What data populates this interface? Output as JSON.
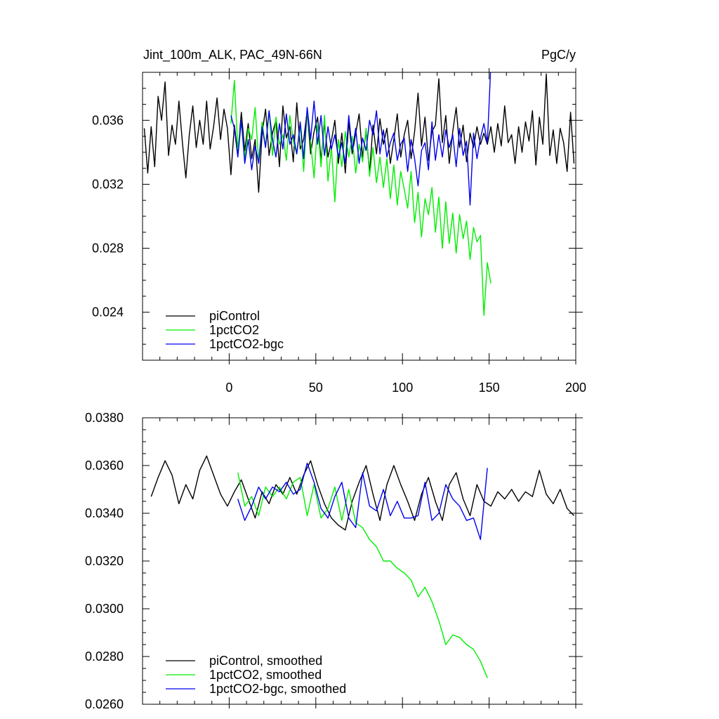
{
  "chart_data": [
    {
      "type": "line",
      "title": "Jint_100m_ALK, PAC_49N-66N",
      "units": "PgC/y",
      "xlim": [
        -50,
        200
      ],
      "ylim": [
        0.021,
        0.039
      ],
      "xticks": [
        0,
        50,
        100,
        150,
        200
      ],
      "yticks": [
        0.024,
        0.028,
        0.032,
        0.036
      ],
      "ytick_labels": [
        "0.024",
        "0.028",
        "0.032",
        "0.036"
      ],
      "legend": {
        "placement": "bottom-left"
      },
      "series": [
        {
          "name": "piControl",
          "color": "#000000",
          "x": [
            -49,
            -47,
            -45,
            -43,
            -41,
            -39,
            -37,
            -35,
            -33,
            -31,
            -29,
            -27,
            -25,
            -23,
            -21,
            -19,
            -17,
            -15,
            -13,
            -11,
            -9,
            -7,
            -5,
            -3,
            -1,
            1,
            3,
            5,
            7,
            9,
            11,
            13,
            15,
            17,
            19,
            21,
            23,
            25,
            27,
            29,
            31,
            33,
            35,
            37,
            39,
            41,
            43,
            45,
            47,
            49,
            51,
            53,
            55,
            57,
            59,
            61,
            63,
            65,
            67,
            69,
            71,
            73,
            75,
            77,
            79,
            81,
            83,
            85,
            87,
            89,
            91,
            93,
            95,
            97,
            99,
            101,
            103,
            105,
            107,
            109,
            111,
            113,
            115,
            117,
            119,
            121,
            123,
            125,
            127,
            129,
            131,
            133,
            135,
            137,
            139,
            141,
            143,
            145,
            147,
            149,
            151,
            153,
            155,
            157,
            159,
            161,
            163,
            165,
            167,
            169,
            171,
            173,
            175,
            177,
            179,
            181,
            183,
            185,
            187,
            189,
            191,
            193,
            195,
            197,
            199
          ],
          "y": [
            0.0355,
            0.0327,
            0.0356,
            0.0331,
            0.0375,
            0.036,
            0.0384,
            0.0338,
            0.0357,
            0.0345,
            0.0372,
            0.0346,
            0.0324,
            0.0351,
            0.0369,
            0.0343,
            0.036,
            0.0345,
            0.0372,
            0.0342,
            0.0356,
            0.0374,
            0.0348,
            0.0367,
            0.0355,
            0.0326,
            0.0357,
            0.0339,
            0.0365,
            0.0341,
            0.0358,
            0.0336,
            0.0348,
            0.0315,
            0.0352,
            0.0367,
            0.0338,
            0.0352,
            0.036,
            0.0331,
            0.0369,
            0.0349,
            0.0356,
            0.0334,
            0.0371,
            0.0342,
            0.0348,
            0.0366,
            0.0339,
            0.0353,
            0.0362,
            0.0335,
            0.0358,
            0.0337,
            0.0347,
            0.036,
            0.0333,
            0.0352,
            0.0327,
            0.0359,
            0.0339,
            0.0352,
            0.0364,
            0.0337,
            0.0353,
            0.0327,
            0.0357,
            0.0339,
            0.0361,
            0.0345,
            0.0355,
            0.0333,
            0.0348,
            0.0364,
            0.0337,
            0.0351,
            0.036,
            0.0336,
            0.0353,
            0.0377,
            0.0344,
            0.0362,
            0.0335,
            0.0353,
            0.0357,
            0.0386,
            0.0346,
            0.0363,
            0.0333,
            0.0353,
            0.0368,
            0.0343,
            0.0357,
            0.0334,
            0.0352,
            0.0343,
            0.0356,
            0.0345,
            0.0352,
            0.0345,
            0.0356,
            0.034,
            0.0358,
            0.0344,
            0.0369,
            0.0346,
            0.0351,
            0.0333,
            0.0356,
            0.034,
            0.0359,
            0.0347,
            0.0366,
            0.0332,
            0.0362,
            0.0345,
            0.0389,
            0.0338,
            0.0354,
            0.0333,
            0.0355,
            0.0346,
            0.0328,
            0.0365,
            0.0333
          ]
        },
        {
          "name": "1pctCO2",
          "color": "#00ee00",
          "x": [
            1,
            3,
            5,
            7,
            9,
            11,
            13,
            15,
            17,
            19,
            21,
            23,
            25,
            27,
            29,
            31,
            33,
            35,
            37,
            39,
            41,
            43,
            45,
            47,
            49,
            51,
            53,
            55,
            57,
            59,
            61,
            63,
            65,
            67,
            69,
            71,
            73,
            75,
            77,
            79,
            81,
            83,
            85,
            87,
            89,
            91,
            93,
            95,
            97,
            99,
            101,
            103,
            105,
            107,
            109,
            111,
            113,
            115,
            117,
            119,
            121,
            123,
            125,
            127,
            129,
            131,
            133,
            135,
            137,
            139,
            141,
            143,
            145,
            147,
            149,
            151
          ],
          "y": [
            0.0358,
            0.0385,
            0.0342,
            0.036,
            0.0336,
            0.0355,
            0.0348,
            0.0368,
            0.0334,
            0.0359,
            0.0343,
            0.0366,
            0.0338,
            0.0362,
            0.0345,
            0.0351,
            0.0335,
            0.0363,
            0.0347,
            0.0339,
            0.0357,
            0.0328,
            0.0367,
            0.0346,
            0.0324,
            0.0358,
            0.0331,
            0.0363,
            0.0322,
            0.0343,
            0.0309,
            0.0348,
            0.0331,
            0.0353,
            0.0337,
            0.035,
            0.0327,
            0.0345,
            0.0334,
            0.0355,
            0.0325,
            0.0343,
            0.0321,
            0.0337,
            0.0318,
            0.0336,
            0.0311,
            0.0332,
            0.0307,
            0.0328,
            0.0317,
            0.0305,
            0.0328,
            0.0296,
            0.0315,
            0.0287,
            0.0311,
            0.0301,
            0.0318,
            0.029,
            0.0312,
            0.028,
            0.0309,
            0.0283,
            0.0302,
            0.0277,
            0.0301,
            0.0286,
            0.0297,
            0.0273,
            0.0293,
            0.0284,
            0.0288,
            0.0238,
            0.0271,
            0.0258
          ]
        },
        {
          "name": "1pctCO2-bgc",
          "color": "#0000ee",
          "x": [
            1,
            3,
            5,
            7,
            9,
            11,
            13,
            15,
            17,
            19,
            21,
            23,
            25,
            27,
            29,
            31,
            33,
            35,
            37,
            39,
            41,
            43,
            45,
            47,
            49,
            51,
            53,
            55,
            57,
            59,
            61,
            63,
            65,
            67,
            69,
            71,
            73,
            75,
            77,
            79,
            81,
            83,
            85,
            87,
            89,
            91,
            93,
            95,
            97,
            99,
            101,
            103,
            105,
            107,
            109,
            111,
            113,
            115,
            117,
            119,
            121,
            123,
            125,
            127,
            129,
            131,
            133,
            135,
            137,
            139,
            141,
            143,
            145,
            147,
            149,
            151
          ],
          "y": [
            0.0363,
            0.0355,
            0.0337,
            0.036,
            0.0333,
            0.0348,
            0.0329,
            0.0344,
            0.0333,
            0.0356,
            0.0343,
            0.0366,
            0.0348,
            0.0337,
            0.0358,
            0.0342,
            0.0364,
            0.0345,
            0.0351,
            0.0339,
            0.0359,
            0.0336,
            0.0368,
            0.0348,
            0.0372,
            0.0345,
            0.0363,
            0.0338,
            0.0356,
            0.0342,
            0.0351,
            0.0337,
            0.0346,
            0.0333,
            0.0363,
            0.0341,
            0.0355,
            0.0333,
            0.0349,
            0.0341,
            0.036,
            0.0351,
            0.0366,
            0.0339,
            0.0354,
            0.0337,
            0.0346,
            0.0352,
            0.0335,
            0.0345,
            0.0349,
            0.0328,
            0.0348,
            0.0336,
            0.0319,
            0.0341,
            0.0346,
            0.0329,
            0.0359,
            0.0335,
            0.0351,
            0.0337,
            0.0354,
            0.0343,
            0.0351,
            0.0331,
            0.0355,
            0.0338,
            0.0347,
            0.0307,
            0.0352,
            0.0336,
            0.0349,
            0.0358,
            0.0346,
            0.0395
          ]
        }
      ]
    },
    {
      "type": "line",
      "title": "",
      "xlim": [
        -50,
        200
      ],
      "ylim": [
        0.026,
        0.038
      ],
      "xticks": [
        0,
        50,
        100,
        150,
        200
      ],
      "yticks": [
        0.026,
        0.028,
        0.03,
        0.032,
        0.034,
        0.036,
        0.038
      ],
      "ytick_labels": [
        "0.0260",
        "0.0280",
        "0.0300",
        "0.0320",
        "0.0340",
        "0.0360",
        "0.0380"
      ],
      "legend": {
        "placement": "bottom-left"
      },
      "series": [
        {
          "name": "piControl, smoothed",
          "color": "#000000",
          "x": [
            -45,
            -41,
            -37,
            -33,
            -29,
            -25,
            -21,
            -17,
            -13,
            -9,
            -5,
            -1,
            3,
            7,
            11,
            15,
            19,
            23,
            27,
            31,
            35,
            39,
            43,
            47,
            51,
            55,
            59,
            63,
            67,
            71,
            75,
            79,
            83,
            87,
            91,
            95,
            99,
            103,
            107,
            111,
            115,
            119,
            123,
            127,
            131,
            135,
            139,
            143,
            147,
            151,
            155,
            159,
            163,
            167,
            171,
            175,
            179,
            183,
            187,
            191,
            195,
            199
          ],
          "y": [
            0.0347,
            0.0355,
            0.0362,
            0.0356,
            0.0344,
            0.0352,
            0.0346,
            0.0358,
            0.0364,
            0.0356,
            0.0348,
            0.0343,
            0.0349,
            0.0354,
            0.0346,
            0.0338,
            0.0349,
            0.0344,
            0.0352,
            0.0348,
            0.0355,
            0.0348,
            0.0356,
            0.0362,
            0.0352,
            0.0344,
            0.0338,
            0.0335,
            0.0333,
            0.0345,
            0.0353,
            0.036,
            0.0348,
            0.0337,
            0.0352,
            0.036,
            0.0352,
            0.0345,
            0.0337,
            0.0348,
            0.0355,
            0.0345,
            0.0337,
            0.0352,
            0.0357,
            0.0346,
            0.0339,
            0.0352,
            0.0345,
            0.0343,
            0.0349,
            0.0346,
            0.035,
            0.0345,
            0.0349,
            0.0347,
            0.0358,
            0.0348,
            0.0344,
            0.035,
            0.0342,
            0.0339
          ]
        },
        {
          "name": "1pctCO2, smoothed",
          "color": "#00ee00",
          "x": [
            5,
            9,
            13,
            17,
            21,
            25,
            29,
            33,
            37,
            41,
            45,
            49,
            53,
            57,
            61,
            65,
            69,
            73,
            77,
            81,
            85,
            89,
            93,
            97,
            101,
            105,
            109,
            113,
            117,
            121,
            125,
            129,
            133,
            137,
            141,
            145,
            149
          ],
          "y": [
            0.0357,
            0.0343,
            0.0347,
            0.0339,
            0.0351,
            0.0347,
            0.0351,
            0.0346,
            0.0353,
            0.0355,
            0.0339,
            0.0352,
            0.0338,
            0.0342,
            0.0351,
            0.0337,
            0.035,
            0.0336,
            0.0334,
            0.0329,
            0.0326,
            0.032,
            0.032,
            0.0317,
            0.0315,
            0.0312,
            0.0305,
            0.0309,
            0.0303,
            0.0295,
            0.0285,
            0.0289,
            0.0288,
            0.0285,
            0.0283,
            0.0278,
            0.0271
          ]
        },
        {
          "name": "1pctCO2-bgc, smoothed",
          "color": "#0000ee",
          "x": [
            5,
            9,
            13,
            17,
            21,
            25,
            29,
            33,
            37,
            41,
            45,
            49,
            53,
            57,
            61,
            65,
            69,
            73,
            77,
            81,
            85,
            89,
            93,
            97,
            101,
            105,
            109,
            113,
            117,
            121,
            125,
            129,
            133,
            137,
            141,
            145,
            149
          ],
          "y": [
            0.0346,
            0.0337,
            0.0343,
            0.0351,
            0.0346,
            0.0351,
            0.0349,
            0.0353,
            0.0348,
            0.035,
            0.0361,
            0.0353,
            0.0342,
            0.0338,
            0.0347,
            0.0353,
            0.0338,
            0.0334,
            0.0357,
            0.0343,
            0.0341,
            0.035,
            0.0339,
            0.0345,
            0.0338,
            0.0338,
            0.0339,
            0.0353,
            0.0337,
            0.034,
            0.0352,
            0.0346,
            0.0343,
            0.0337,
            0.0338,
            0.0329,
            0.0359
          ]
        }
      ]
    }
  ]
}
